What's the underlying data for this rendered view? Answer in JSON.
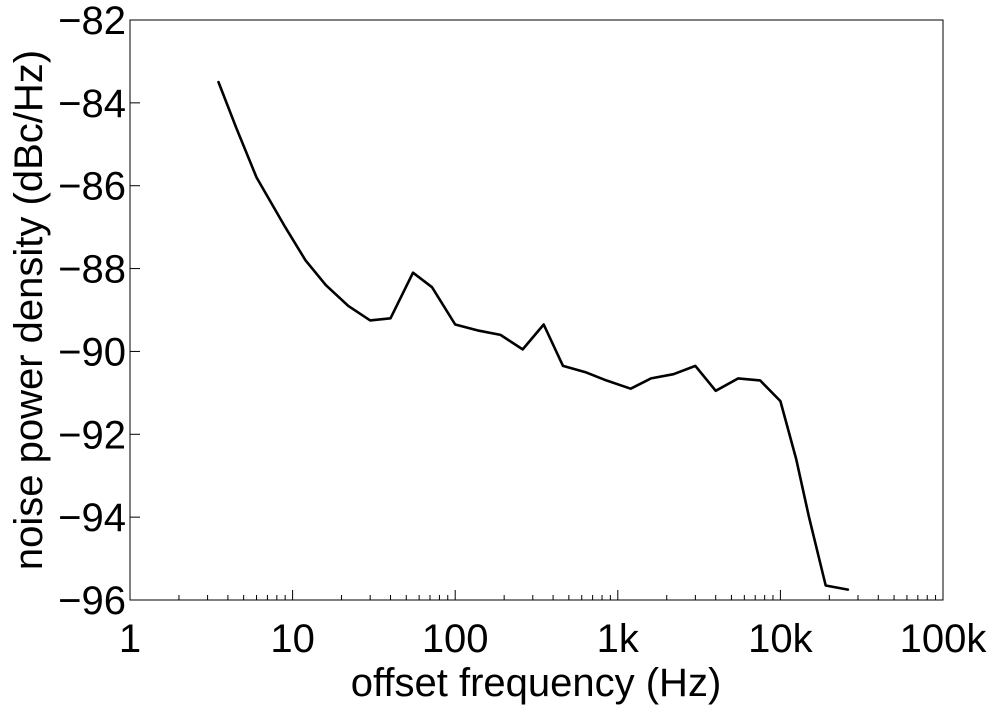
{
  "chart_data": {
    "type": "line",
    "title": "",
    "xlabel": "offset frequency (Hz)",
    "ylabel": "noise power density (dBc/Hz)",
    "xscale": "log",
    "xlim": [
      1,
      100000
    ],
    "ylim": [
      -96,
      -82
    ],
    "grid": false,
    "x_ticks": [
      {
        "value": 1,
        "label": "1"
      },
      {
        "value": 10,
        "label": "10"
      },
      {
        "value": 100,
        "label": "100"
      },
      {
        "value": 1000,
        "label": "1k"
      },
      {
        "value": 10000,
        "label": "10k"
      },
      {
        "value": 100000,
        "label": "100k"
      }
    ],
    "y_ticks": [
      {
        "value": -82,
        "label": "−82"
      },
      {
        "value": -84,
        "label": "−84"
      },
      {
        "value": -86,
        "label": "−86"
      },
      {
        "value": -88,
        "label": "−88"
      },
      {
        "value": -90,
        "label": "−90"
      },
      {
        "value": -92,
        "label": "−92"
      },
      {
        "value": -94,
        "label": "−94"
      },
      {
        "value": -96,
        "label": "−96"
      }
    ],
    "series": [
      {
        "color": "#000000",
        "points": [
          [
            3.5,
            -83.5
          ],
          [
            4.5,
            -84.6
          ],
          [
            6,
            -85.8
          ],
          [
            9,
            -87.0
          ],
          [
            12,
            -87.8
          ],
          [
            16,
            -88.4
          ],
          [
            22,
            -88.9
          ],
          [
            30,
            -89.25
          ],
          [
            40,
            -89.2
          ],
          [
            55,
            -88.1
          ],
          [
            72,
            -88.45
          ],
          [
            100,
            -89.35
          ],
          [
            140,
            -89.5
          ],
          [
            190,
            -89.6
          ],
          [
            260,
            -89.95
          ],
          [
            350,
            -89.35
          ],
          [
            460,
            -90.35
          ],
          [
            630,
            -90.5
          ],
          [
            850,
            -90.7
          ],
          [
            1200,
            -90.9
          ],
          [
            1600,
            -90.65
          ],
          [
            2200,
            -90.55
          ],
          [
            3000,
            -90.35
          ],
          [
            4000,
            -90.95
          ],
          [
            5500,
            -90.65
          ],
          [
            7500,
            -90.7
          ],
          [
            10000,
            -91.2
          ],
          [
            12500,
            -92.6
          ],
          [
            15000,
            -94.0
          ],
          [
            19000,
            -95.65
          ],
          [
            26000,
            -95.75
          ]
        ]
      }
    ]
  }
}
